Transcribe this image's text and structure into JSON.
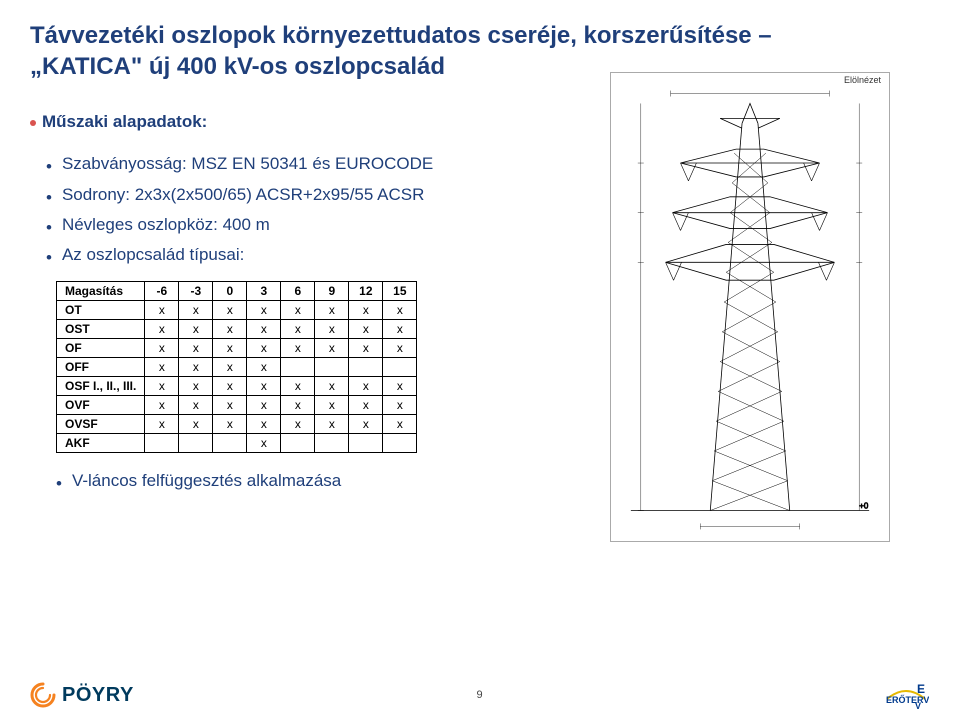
{
  "title_line1": "Távvezetéki oszlopok környezettudatos cseréje, korszerűsítése –",
  "title_line2": "„KATICA\" új 400 kV-os oszlopcsalád",
  "section_header": "Műszaki alapadatok:",
  "specs": [
    "Szabványosság: MSZ EN 50341 és EUROCODE",
    "Sodrony: 2x3x(2x500/65) ACSR+2x95/55 ACSR",
    "Névleges oszlopköz: 400 m",
    "Az oszlopcsalád típusai:"
  ],
  "table": {
    "header_label": "Magasítás",
    "columns": [
      "-6",
      "-3",
      "0",
      "3",
      "6",
      "9",
      "12",
      "15"
    ],
    "rows": [
      {
        "label": "OT",
        "marks": [
          "x",
          "x",
          "x",
          "x",
          "x",
          "x",
          "x",
          "x"
        ]
      },
      {
        "label": "OST",
        "marks": [
          "x",
          "x",
          "x",
          "x",
          "x",
          "x",
          "x",
          "x"
        ]
      },
      {
        "label": "OF",
        "marks": [
          "x",
          "x",
          "x",
          "x",
          "x",
          "x",
          "x",
          "x"
        ]
      },
      {
        "label": "OFF",
        "marks": [
          "x",
          "x",
          "x",
          "x",
          "",
          "",
          "",
          ""
        ]
      },
      {
        "label": "OSF I., II., III.",
        "marks": [
          "x",
          "x",
          "x",
          "x",
          "x",
          "x",
          "x",
          "x"
        ]
      },
      {
        "label": "OVF",
        "marks": [
          "x",
          "x",
          "x",
          "x",
          "x",
          "x",
          "x",
          "x"
        ]
      },
      {
        "label": "OVSF",
        "marks": [
          "x",
          "x",
          "x",
          "x",
          "x",
          "x",
          "x",
          "x"
        ]
      },
      {
        "label": "AKF",
        "marks": [
          "",
          "",
          "",
          "x",
          "",
          "",
          "",
          ""
        ]
      }
    ]
  },
  "footer_bullet": "V-láncos felfüggesztés alkalmazása",
  "tower_caption": "Elölnézet",
  "page_number": "9",
  "logo_poyry": "PÖYRY",
  "logo_eroterv_top": "E",
  "logo_eroterv_mid": "ERŐTERV",
  "logo_eroterv_bottom": "V",
  "colors": {
    "title": "#1f3f7a",
    "bullet_dot": "#d9534f",
    "text": "#1f3f7a",
    "table_border": "#000000",
    "poyry_swirl": "#f58220",
    "poyry_text": "#003a5d",
    "eroterv": "#003a8c"
  }
}
